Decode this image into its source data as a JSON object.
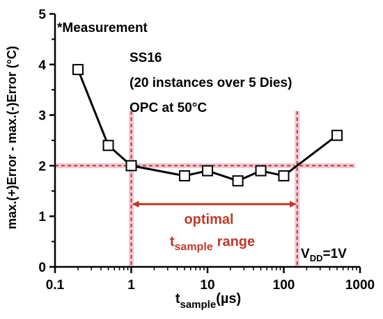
{
  "chart_data": {
    "type": "line",
    "x_scale": "log",
    "xlim": [
      0.1,
      1000
    ],
    "ylim": [
      0,
      5
    ],
    "x_ticks": [
      "0.1",
      "1",
      "10",
      "100",
      "1000"
    ],
    "y_ticks": [
      "0",
      "1",
      "2",
      "3",
      "4",
      "5"
    ],
    "xlabel_main": "t",
    "xlabel_sub": "sample",
    "xlabel_unit": "(µs)",
    "ylabel": "max.(+)Error - max.(-)Error (°C)",
    "series": [
      {
        "x": [
          0.2,
          0.5,
          1,
          5,
          10,
          25,
          50,
          100,
          500
        ],
        "y": [
          3.9,
          2.4,
          2.0,
          1.8,
          1.9,
          1.7,
          1.9,
          1.8,
          2.6
        ]
      }
    ],
    "annotations": {
      "measurement": "*Measurement",
      "info_lines": [
        "SS16",
        "(20 instances over 5 Dies)",
        "OPC at 50°C"
      ],
      "optimal_word": "optimal",
      "range_main": "t",
      "range_sub": "sample",
      "range_tail": "range",
      "vdd_main": "V",
      "vdd_sub": "DD",
      "vdd_tail": "=1V"
    },
    "reference_lines": {
      "horizontal_y": 2.0,
      "vertical_x": [
        1,
        150
      ],
      "arrow_x": [
        1,
        150
      ]
    },
    "colors": {
      "data": "#000000",
      "reference": "#c0392b",
      "reference_shadow": "#f2c6d4"
    }
  }
}
